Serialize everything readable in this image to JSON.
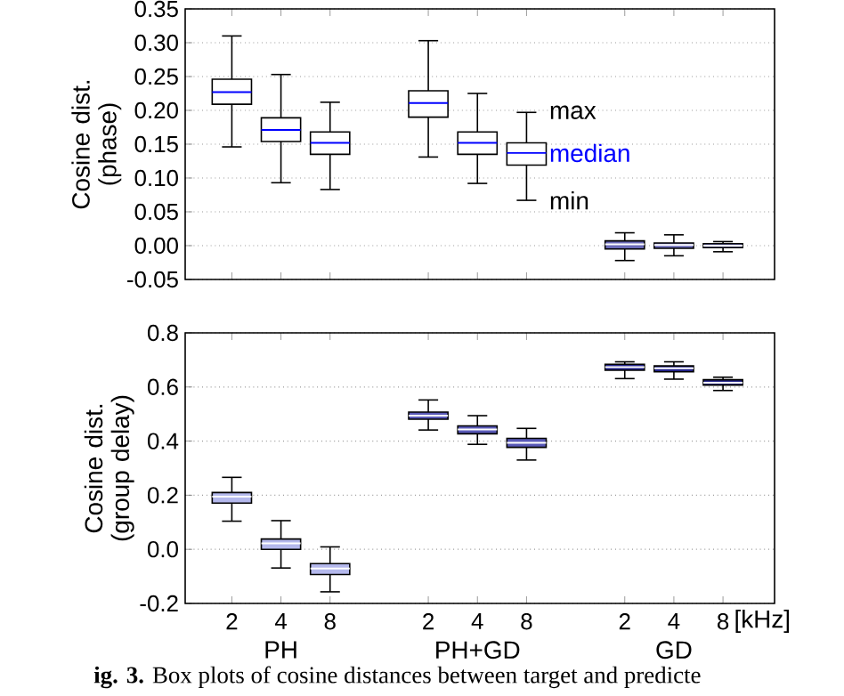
{
  "chart_data": [
    {
      "type": "box",
      "ylabel": "Cosine dist. (phase)",
      "categories": [
        "2",
        "4",
        "8",
        null,
        "2",
        "4",
        "8",
        null,
        "2",
        "4",
        "8"
      ],
      "series": [
        {
          "color": "#ffffff",
          "boxes": [
            {
              "low": 0.146,
              "q1": 0.209,
              "median": 0.227,
              "q3": 0.246,
              "high": 0.31
            },
            {
              "low": 0.093,
              "q1": 0.154,
              "median": 0.171,
              "q3": 0.189,
              "high": 0.253
            },
            {
              "low": 0.083,
              "q1": 0.135,
              "median": 0.152,
              "q3": 0.168,
              "high": 0.212
            },
            null,
            {
              "low": 0.131,
              "q1": 0.19,
              "median": 0.211,
              "q3": 0.229,
              "high": 0.303
            },
            {
              "low": 0.092,
              "q1": 0.135,
              "median": 0.152,
              "q3": 0.168,
              "high": 0.225
            },
            {
              "low": 0.067,
              "q1": 0.119,
              "median": 0.137,
              "q3": 0.152,
              "high": 0.197
            },
            null,
            null,
            null,
            null
          ]
        },
        {
          "color": "#6b6bb8",
          "boxes": [
            null,
            null,
            null,
            null,
            null,
            null,
            null,
            null,
            {
              "low": -0.022,
              "q1": -0.005,
              "median": 0.002,
              "q3": 0.007,
              "high": 0.019
            },
            {
              "low": -0.015,
              "q1": -0.004,
              "median": 0.001,
              "q3": 0.004,
              "high": 0.016
            },
            {
              "low": -0.009,
              "q1": -0.003,
              "median": 0.0,
              "q3": 0.003,
              "high": 0.006
            }
          ]
        }
      ],
      "ylim": [
        -0.05,
        0.35
      ],
      "yticks": [
        {
          "value": -0.05,
          "label": "-0.05"
        },
        {
          "value": 0,
          "label": "0.00"
        },
        {
          "value": 0.05,
          "label": "0.05"
        },
        {
          "value": 0.1,
          "label": "0.10"
        },
        {
          "value": 0.15,
          "label": "0.15"
        },
        {
          "value": 0.2,
          "label": "0.20"
        },
        {
          "value": 0.25,
          "label": "0.25"
        },
        {
          "value": 0.3,
          "label": "0.30"
        },
        {
          "value": 0.35,
          "label": "0.35"
        }
      ],
      "grid": "y",
      "tick_labels": "y",
      "annotations": [
        "max",
        "median",
        "min"
      ]
    },
    {
      "type": "box",
      "ylabel": "Cosine dist. (group delay)",
      "categories": [
        "2",
        "4",
        "8",
        null,
        "2",
        "4",
        "8",
        null,
        "2",
        "4",
        "8"
      ],
      "series": [
        {
          "color": "#b4b8ec",
          "boxes": [
            {
              "low": 0.104,
              "q1": 0.171,
              "median": 0.195,
              "q3": 0.21,
              "high": 0.266
            },
            {
              "low": -0.069,
              "q1": 0.0,
              "median": 0.022,
              "q3": 0.038,
              "high": 0.106
            },
            {
              "low": -0.157,
              "q1": -0.093,
              "median": -0.071,
              "q3": -0.053,
              "high": 0.009
            },
            null,
            null,
            null,
            null,
            null,
            null,
            null,
            null
          ]
        },
        {
          "color": "#5a5ab8",
          "boxes": [
            null,
            null,
            null,
            null,
            {
              "low": 0.441,
              "q1": 0.481,
              "median": 0.494,
              "q3": 0.507,
              "high": 0.552
            },
            {
              "low": 0.388,
              "q1": 0.427,
              "median": 0.443,
              "q3": 0.456,
              "high": 0.494
            },
            {
              "low": 0.33,
              "q1": 0.377,
              "median": 0.394,
              "q3": 0.41,
              "high": 0.447
            },
            null,
            null,
            null,
            null
          ]
        },
        {
          "color": "#23238a",
          "boxes": [
            null,
            null,
            null,
            null,
            null,
            null,
            null,
            null,
            {
              "low": 0.631,
              "q1": 0.662,
              "median": 0.673,
              "q3": 0.684,
              "high": 0.693
            },
            {
              "low": 0.629,
              "q1": 0.656,
              "median": 0.669,
              "q3": 0.678,
              "high": 0.693
            },
            {
              "low": 0.587,
              "q1": 0.607,
              "median": 0.616,
              "q3": 0.627,
              "high": 0.636
            }
          ]
        }
      ],
      "ylim": [
        -0.2,
        0.8
      ],
      "yticks": [
        {
          "value": -0.2,
          "label": "-0.2"
        },
        {
          "value": 0,
          "label": "0.0"
        },
        {
          "value": 0.2,
          "label": "0.2"
        },
        {
          "value": 0.4,
          "label": "0.4"
        },
        {
          "value": 0.6,
          "label": "0.6"
        },
        {
          "value": 0.8,
          "label": "0.8"
        }
      ],
      "grid": "y",
      "annotations": [
        "PH",
        "PH+GD",
        "GD",
        "[kHz]",
        "**ig. 3.** Box plots of cosine distances between target and predicte"
      ]
    }
  ]
}
